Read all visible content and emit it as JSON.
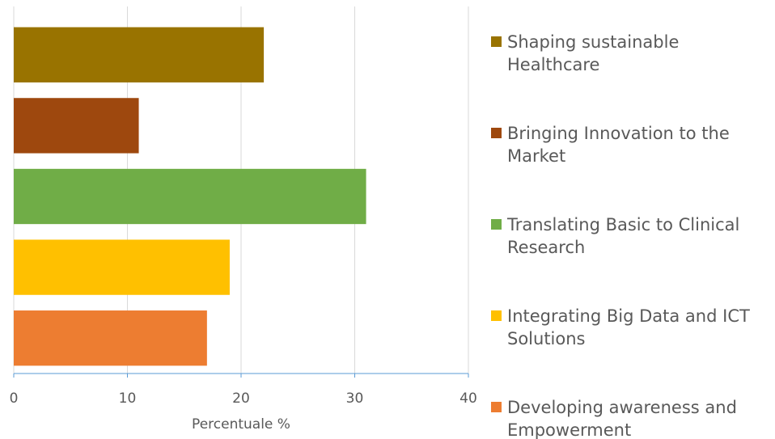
{
  "chart_data": {
    "type": "bar",
    "orientation": "horizontal",
    "categories": [
      "Shaping sustainable Healthcare",
      "Bringing Innovation to the Market",
      "Translating Basic to Clinical Research",
      "Integrating Big Data and ICT Solutions",
      "Developing awareness and Empowerment"
    ],
    "values": [
      22,
      11,
      31,
      19,
      17
    ],
    "colors": [
      "#997300",
      "#9e480e",
      "#70ad47",
      "#ffc000",
      "#ed7d31"
    ],
    "xlabel": "Percentuale %",
    "xlim": [
      0,
      40
    ],
    "xticks": [
      0,
      10,
      20,
      30,
      40
    ],
    "grid": true,
    "legend": "right"
  }
}
